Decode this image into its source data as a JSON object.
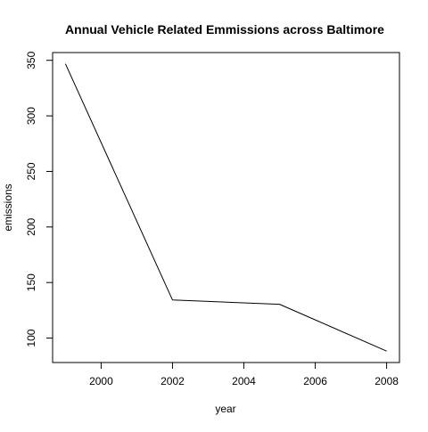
{
  "chart_data": {
    "type": "line",
    "title": "Annual Vehicle Related Emmissions across Baltimore",
    "xlabel": "year",
    "ylabel": "emissions",
    "x": [
      1999,
      2002,
      2005,
      2008
    ],
    "series": [
      {
        "values": [
          346.8,
          134.3,
          130.4,
          88.3
        ]
      }
    ],
    "xlim": [
      1998.64,
      2008.36
    ],
    "ylim": [
      78.0,
      357.0
    ],
    "x_ticks": [
      2000,
      2002,
      2004,
      2006,
      2008
    ],
    "y_ticks": [
      100,
      150,
      200,
      250,
      300,
      350
    ],
    "x_tick_labels": [
      "2000",
      "2002",
      "2004",
      "2006",
      "2008"
    ],
    "y_tick_labels": [
      "100",
      "150",
      "200",
      "250",
      "300",
      "350"
    ],
    "grid": false,
    "line_color": "#000000",
    "axis_color": "#000000"
  }
}
